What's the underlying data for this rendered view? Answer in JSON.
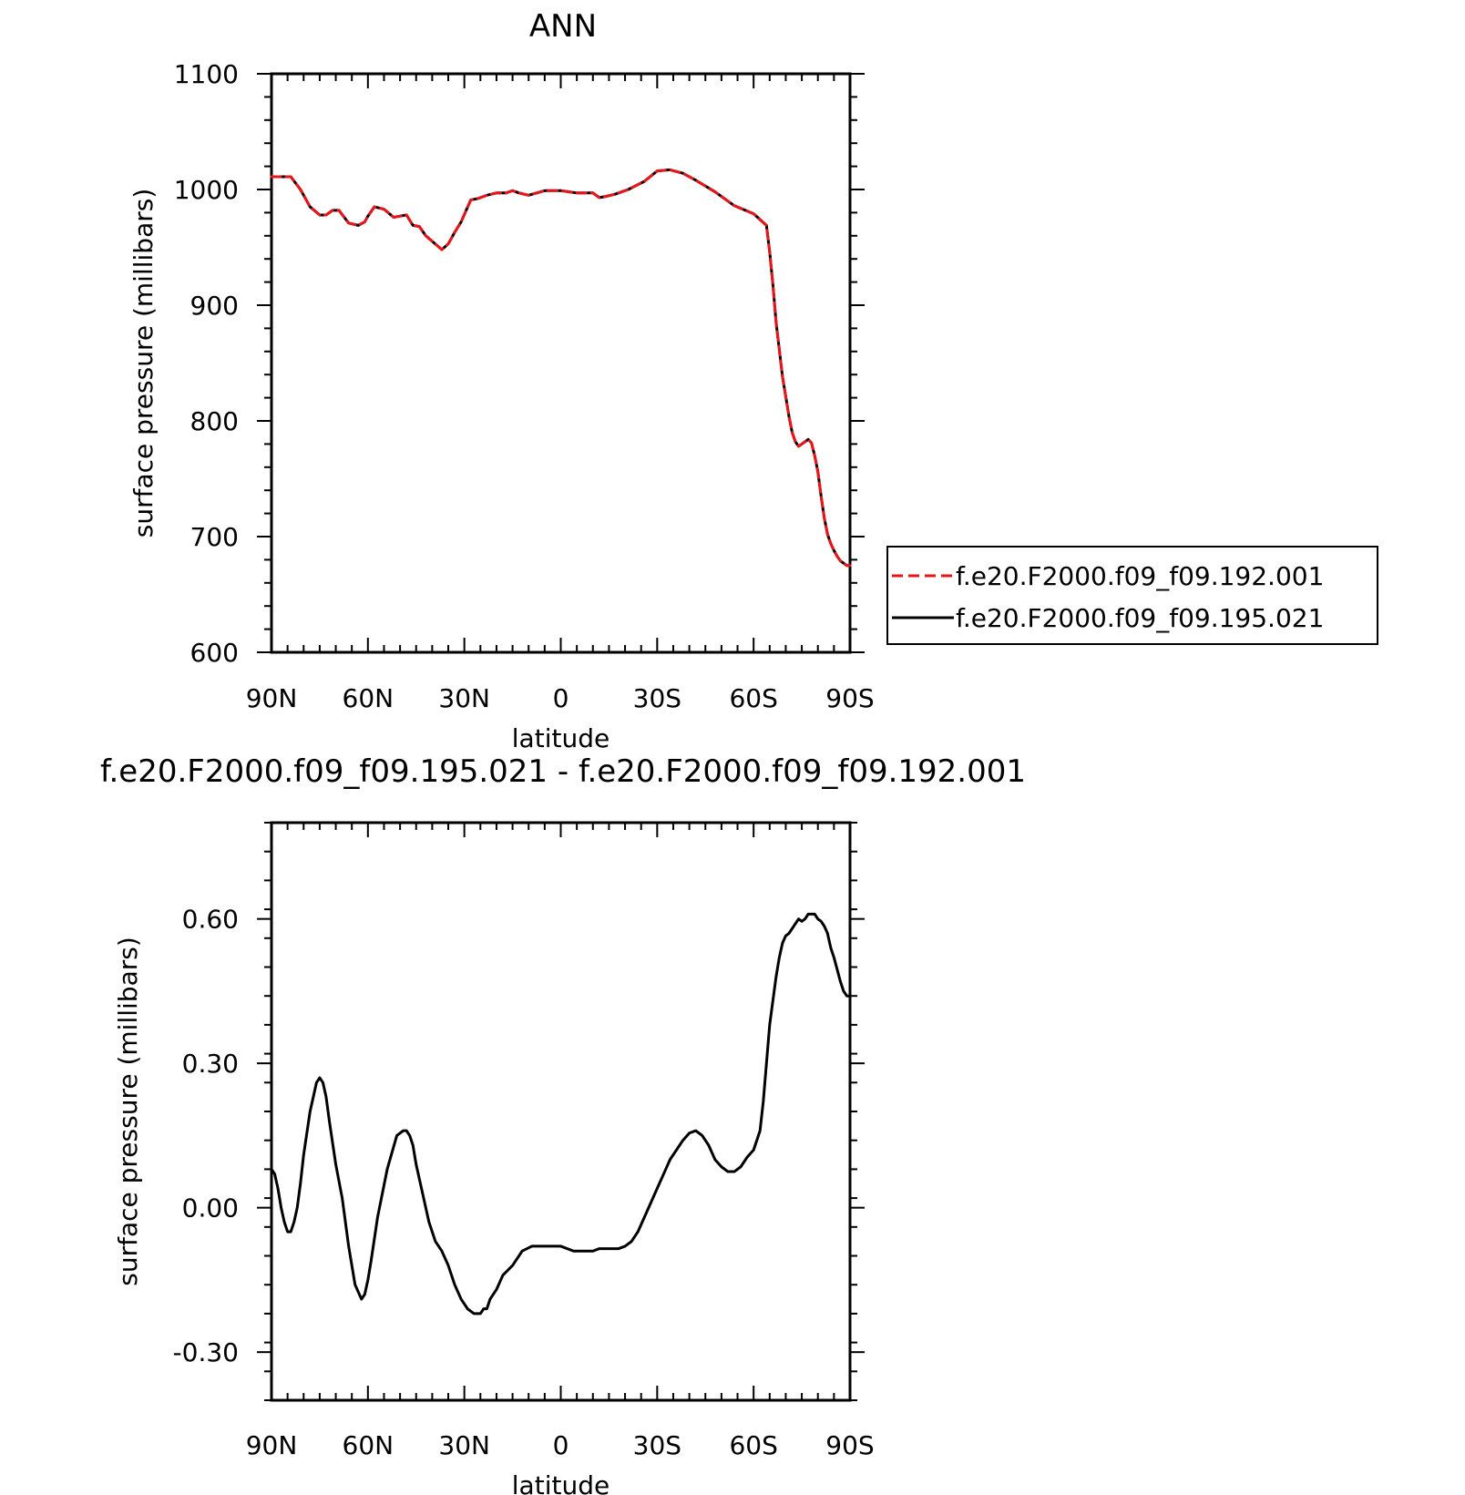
{
  "chart_data": [
    {
      "type": "line",
      "title": "ANN",
      "xlabel": "latitude",
      "ylabel": "surface pressure (millibars)",
      "xlim": [
        90,
        -90
      ],
      "ylim": [
        600,
        1100
      ],
      "xticks": [
        90,
        60,
        30,
        0,
        -30,
        -60,
        -90
      ],
      "xtick_labels": [
        "90N",
        "60N",
        "30N",
        "0",
        "30S",
        "60S",
        "90S"
      ],
      "yticks": [
        600,
        700,
        800,
        900,
        1000,
        1100
      ],
      "ytick_labels": [
        "600",
        "700",
        "800",
        "900",
        "1000",
        "1100"
      ],
      "legend_position": "right",
      "series": [
        {
          "name": "f.e20.F2000.f09_f09.192.001",
          "color": "#e8161a",
          "style": "dashed",
          "x": [
            90,
            84,
            81,
            79,
            78,
            75,
            73,
            71,
            69,
            66,
            63,
            61,
            60,
            58,
            55,
            52,
            48,
            46,
            44,
            42,
            37,
            35,
            33,
            31,
            28,
            26,
            23,
            20,
            17,
            15,
            13,
            10,
            5,
            0,
            -5,
            -10,
            -12,
            -14,
            -17,
            -21,
            -26,
            -30,
            -34,
            -38,
            -42,
            -48,
            -54,
            -60,
            -64,
            -65,
            -66,
            -67,
            -69,
            -71,
            -72,
            -73,
            -74,
            -76,
            -77,
            -78,
            -79,
            -80,
            -81,
            -82,
            -83,
            -84,
            -85,
            -86,
            -87,
            -88,
            -89,
            -90
          ],
          "y": [
            1011,
            1011,
            1000,
            990,
            985,
            978,
            978,
            982,
            982,
            971,
            969,
            972,
            977,
            985,
            983,
            976,
            978,
            969,
            968,
            960,
            948,
            953,
            963,
            972,
            991,
            992,
            995,
            997,
            997,
            999,
            997,
            995,
            999,
            999,
            997,
            997,
            993,
            994,
            996,
            1000,
            1007,
            1016,
            1017,
            1014,
            1008,
            998,
            986,
            979,
            969,
            946,
            918,
            885,
            838,
            804,
            790,
            782,
            778,
            782,
            784,
            781,
            770,
            756,
            735,
            716,
            702,
            694,
            688,
            683,
            679,
            677,
            675,
            675
          ]
        },
        {
          "name": "f.e20.F2000.f09_f09.195.021",
          "color": "#000000",
          "style": "solid",
          "x": [
            90,
            84,
            81,
            79,
            78,
            75,
            73,
            71,
            69,
            66,
            63,
            61,
            60,
            58,
            55,
            52,
            48,
            46,
            44,
            42,
            37,
            35,
            33,
            31,
            28,
            26,
            23,
            20,
            17,
            15,
            13,
            10,
            5,
            0,
            -5,
            -10,
            -12,
            -14,
            -17,
            -21,
            -26,
            -30,
            -34,
            -38,
            -42,
            -48,
            -54,
            -60,
            -64,
            -65,
            -66,
            -67,
            -69,
            -71,
            -72,
            -73,
            -74,
            -76,
            -77,
            -78,
            -79,
            -80,
            -81,
            -82,
            -83,
            -84,
            -85,
            -86,
            -87,
            -88,
            -89,
            -90
          ],
          "y": [
            1011,
            1011,
            1000,
            990,
            985,
            978,
            978,
            982,
            982,
            971,
            969,
            972,
            977,
            985,
            983,
            976,
            978,
            969,
            968,
            960,
            948,
            953,
            963,
            972,
            991,
            992,
            995,
            997,
            997,
            999,
            997,
            995,
            999,
            999,
            997,
            997,
            993,
            994,
            996,
            1000,
            1007,
            1016,
            1017,
            1014,
            1008,
            998,
            986,
            979,
            969,
            946,
            918,
            885,
            838,
            804,
            790,
            782,
            778,
            782,
            784,
            781,
            770,
            756,
            735,
            716,
            702,
            694,
            688,
            683,
            679,
            677,
            675,
            675
          ]
        }
      ]
    },
    {
      "type": "line",
      "title": "f.e20.F2000.f09_f09.195.021 - f.e20.F2000.f09_f09.192.001",
      "xlabel": "latitude",
      "ylabel": "surface pressure (millibars)",
      "xlim": [
        90,
        -90
      ],
      "ylim": [
        -0.4,
        0.8
      ],
      "xticks": [
        90,
        60,
        30,
        0,
        -30,
        -60,
        -90
      ],
      "xtick_labels": [
        "90N",
        "60N",
        "30N",
        "0",
        "30S",
        "60S",
        "90S"
      ],
      "yticks": [
        -0.3,
        0.0,
        0.3,
        0.6
      ],
      "ytick_labels": [
        "-0.30",
        "0.00",
        "0.30",
        "0.60"
      ],
      "series": [
        {
          "color": "#000000",
          "style": "solid",
          "x": [
            90,
            89,
            88,
            87,
            86,
            85,
            84,
            83,
            82,
            81,
            80,
            78,
            76,
            75,
            74,
            73,
            72,
            70,
            68,
            66,
            64,
            62,
            61,
            60,
            59,
            57,
            54,
            51,
            49,
            48,
            47,
            46,
            45,
            43,
            41,
            40,
            39,
            38,
            37,
            35,
            33,
            31,
            29,
            27,
            26,
            25,
            24,
            23,
            22,
            20,
            18,
            15,
            12,
            9,
            7,
            5,
            2,
            0,
            -2,
            -4,
            -6,
            -8,
            -10,
            -12,
            -14,
            -16,
            -18,
            -20,
            -22,
            -24,
            -26,
            -28,
            -30,
            -32,
            -34,
            -36,
            -38,
            -40,
            -42,
            -44,
            -46,
            -48,
            -50,
            -52,
            -54,
            -56,
            -58,
            -60,
            -62,
            -63,
            -64,
            -65,
            -66,
            -67,
            -68,
            -69,
            -70,
            -71,
            -72,
            -73,
            -74,
            -75,
            -76,
            -77,
            -78,
            -79,
            -80,
            -81,
            -82,
            -83,
            -84,
            -85,
            -86,
            -87,
            -88,
            -89,
            -90
          ],
          "y": [
            0.08,
            0.07,
            0.04,
            0.0,
            -0.03,
            -0.05,
            -0.05,
            -0.03,
            0.0,
            0.05,
            0.11,
            0.2,
            0.26,
            0.27,
            0.26,
            0.23,
            0.18,
            0.09,
            0.02,
            -0.08,
            -0.16,
            -0.19,
            -0.18,
            -0.15,
            -0.11,
            -0.02,
            0.08,
            0.15,
            0.16,
            0.16,
            0.15,
            0.13,
            0.09,
            0.03,
            -0.03,
            -0.05,
            -0.07,
            -0.08,
            -0.09,
            -0.12,
            -0.16,
            -0.19,
            -0.21,
            -0.22,
            -0.22,
            -0.22,
            -0.21,
            -0.21,
            -0.19,
            -0.17,
            -0.14,
            -0.12,
            -0.09,
            -0.08,
            -0.08,
            -0.08,
            -0.08,
            -0.08,
            -0.085,
            -0.09,
            -0.09,
            -0.09,
            -0.09,
            -0.085,
            -0.085,
            -0.085,
            -0.085,
            -0.08,
            -0.07,
            -0.05,
            -0.02,
            0.01,
            0.04,
            0.07,
            0.1,
            0.12,
            0.14,
            0.155,
            0.16,
            0.15,
            0.13,
            0.1,
            0.085,
            0.075,
            0.075,
            0.085,
            0.105,
            0.12,
            0.16,
            0.22,
            0.3,
            0.38,
            0.43,
            0.48,
            0.52,
            0.55,
            0.565,
            0.57,
            0.58,
            0.59,
            0.6,
            0.595,
            0.6,
            0.61,
            0.61,
            0.61,
            0.6,
            0.595,
            0.585,
            0.57,
            0.54,
            0.52,
            0.495,
            0.47,
            0.45,
            0.44,
            0.44
          ]
        }
      ]
    }
  ]
}
